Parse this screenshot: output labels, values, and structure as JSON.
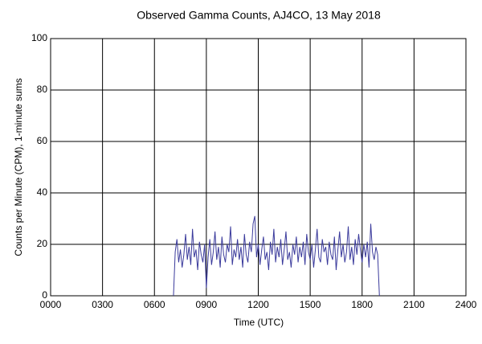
{
  "chart_data": {
    "type": "line",
    "title": "Observed Gamma Counts, AJ4CO, 13 May 2018",
    "x_label": "Time (UTC)",
    "y_label": "Counts per Minute (CPM), 1-minute sums",
    "x": [
      7.1,
      7.2,
      7.3,
      7.4,
      7.5,
      7.6,
      7.7,
      7.8,
      7.9,
      8.0,
      8.1,
      8.2,
      8.3,
      8.4,
      8.5,
      8.6,
      8.7,
      8.8,
      8.9,
      9.0,
      9.1,
      9.2,
      9.3,
      9.4,
      9.5,
      9.6,
      9.7,
      9.8,
      9.9,
      10.0,
      10.1,
      10.2,
      10.3,
      10.4,
      10.5,
      10.6,
      10.7,
      10.8,
      10.9,
      11.0,
      11.1,
      11.2,
      11.3,
      11.4,
      11.5,
      11.6,
      11.7,
      11.8,
      11.9,
      12.0,
      12.1,
      12.2,
      12.3,
      12.4,
      12.5,
      12.6,
      12.7,
      12.8,
      12.9,
      13.0,
      13.1,
      13.2,
      13.3,
      13.4,
      13.5,
      13.6,
      13.7,
      13.8,
      13.9,
      14.0,
      14.1,
      14.2,
      14.3,
      14.4,
      14.5,
      14.6,
      14.7,
      14.8,
      14.9,
      15.0,
      15.1,
      15.2,
      15.3,
      15.4,
      15.5,
      15.6,
      15.7,
      15.8,
      15.9,
      16.0,
      16.1,
      16.2,
      16.3,
      16.4,
      16.5,
      16.6,
      16.7,
      16.8,
      16.9,
      17.0,
      17.1,
      17.2,
      17.3,
      17.4,
      17.5,
      17.6,
      17.7,
      17.8,
      17.9,
      18.0,
      18.1,
      18.2,
      18.3,
      18.4,
      18.5,
      18.6,
      18.7,
      18.8,
      18.9,
      19.0
    ],
    "series": [
      {
        "color": "#3b3b9c",
        "values": [
          0,
          17,
          22,
          13,
          18,
          11,
          16,
          24,
          14,
          19,
          12,
          26,
          15,
          18,
          10,
          21,
          16,
          13,
          20,
          3,
          15,
          22,
          12,
          17,
          25,
          14,
          19,
          11,
          23,
          16,
          13,
          20,
          17,
          27,
          12,
          18,
          15,
          22,
          14,
          19,
          11,
          24,
          16,
          13,
          21,
          17,
          28,
          31,
          15,
          20,
          12,
          18,
          23,
          14,
          17,
          10,
          21,
          16,
          26,
          13,
          19,
          15,
          22,
          12,
          18,
          25,
          14,
          17,
          11,
          20,
          16,
          23,
          13,
          19,
          15,
          21,
          12,
          24,
          17,
          14,
          20,
          11,
          18,
          26,
          15,
          13,
          22,
          17,
          19,
          12,
          21,
          16,
          14,
          23,
          10,
          18,
          25,
          15,
          20,
          13,
          17,
          27,
          14,
          19,
          12,
          22,
          16,
          24,
          18,
          13,
          20,
          15,
          21,
          11,
          28,
          17,
          14,
          19,
          16,
          0
        ]
      }
    ],
    "xlim": [
      0,
      24
    ],
    "xticks": [
      {
        "value": 0,
        "label": "0000"
      },
      {
        "value": 3,
        "label": "0300"
      },
      {
        "value": 6,
        "label": "0600"
      },
      {
        "value": 9,
        "label": "0900"
      },
      {
        "value": 12,
        "label": "1200"
      },
      {
        "value": 15,
        "label": "1500"
      },
      {
        "value": 18,
        "label": "1800"
      },
      {
        "value": 21,
        "label": "2100"
      },
      {
        "value": 24,
        "label": "2400"
      }
    ],
    "ylim": [
      0,
      100
    ],
    "yticks": [
      0,
      20,
      40,
      60,
      80,
      100
    ],
    "grid": true
  }
}
